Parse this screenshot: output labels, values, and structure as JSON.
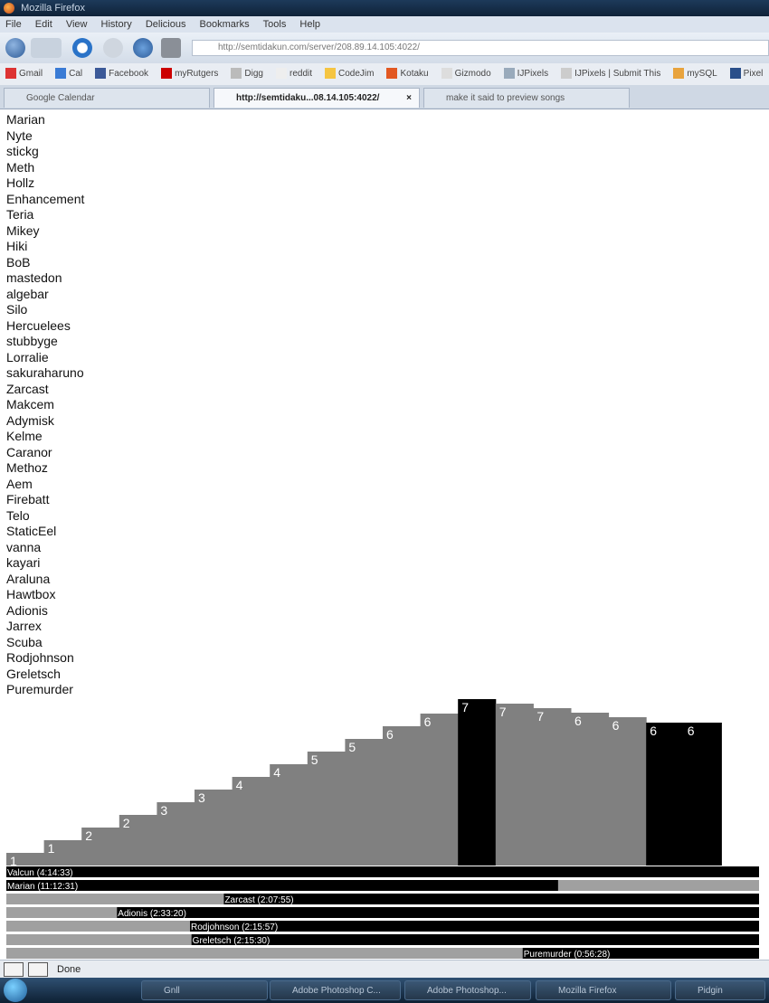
{
  "window": {
    "title": "Mozilla Firefox"
  },
  "menu": [
    "File",
    "Edit",
    "View",
    "History",
    "Delicious",
    "Bookmarks",
    "Tools",
    "Help"
  ],
  "url": {
    "value": "http://semtidakun.com/server/208.89.14.105:4022/"
  },
  "bookmarks": [
    "Gmail",
    "Cal",
    "Facebook",
    "myRutgers",
    "Digg",
    "reddit",
    "CodeJim",
    "Kotaku",
    "Gizmodo",
    "IJPixels",
    "IJPixels | Submit This",
    "mySQL",
    "Pixel"
  ],
  "tabs": [
    {
      "label": "Google Calendar"
    },
    {
      "label": "http://semtidaku...08.14.105:4022/"
    },
    {
      "label": "make it said to preview songs"
    }
  ],
  "players": [
    "Marian",
    "Nyte",
    "stickg",
    "Meth",
    "Hollz",
    "Enhancement",
    "Teria",
    "Mikey",
    "Hiki",
    "BoB",
    "mastedon",
    "algebar",
    "Silo",
    "Hercuelees",
    "stubbyge",
    "Lorralie",
    "sakuraharuno",
    "Zarcast",
    "Makcem",
    "Adymisk",
    "Kelme",
    "Caranor",
    "Methoz",
    "Aem",
    "Firebatt",
    "Telo",
    "StaticEel",
    "vanna",
    "kayari",
    "Araluna",
    "Hawtbox",
    "Adionis",
    "Jarrex",
    "Scuba",
    "Rodjohnson",
    "Greletsch",
    "Puremurder"
  ],
  "chart_data": {
    "type": "bar",
    "values": [
      1,
      1,
      2,
      2,
      3,
      3,
      4,
      4,
      5,
      5,
      6,
      6,
      7,
      7,
      7,
      6,
      6,
      6,
      6
    ],
    "highlighted_bars": [
      12,
      17,
      18
    ],
    "timelines": [
      {
        "label": "Valcun (4:14:33)",
        "start": 0.0,
        "end": 0.0
      },
      {
        "label": "Marian (11:12:31)",
        "start": 0.0,
        "end": 0.733
      },
      {
        "label": "Zarcast (2:07:55)",
        "start": 0.289,
        "end": 1.0
      },
      {
        "label": "Adionis (2:33:20)",
        "start": 0.147,
        "end": 1.0
      },
      {
        "label": "Rodjohnson (2:15:57)",
        "start": 0.244,
        "end": 1.0
      },
      {
        "label": "Greletsch (2:15:30)",
        "start": 0.246,
        "end": 1.0
      },
      {
        "label": "Puremurder (0:56:28)",
        "start": 0.686,
        "end": 1.0
      }
    ],
    "colors": {
      "bar": "#808080",
      "highlight": "#000000",
      "active": "#000000",
      "inactive": "#a0a0a0",
      "label": "#ffffff"
    }
  },
  "status": {
    "text": "Done"
  },
  "taskbar": [
    "Gnll",
    "Adobe Photoshop C...",
    "Adobe Photoshop...",
    "Mozilla Firefox",
    "Pidgin"
  ]
}
